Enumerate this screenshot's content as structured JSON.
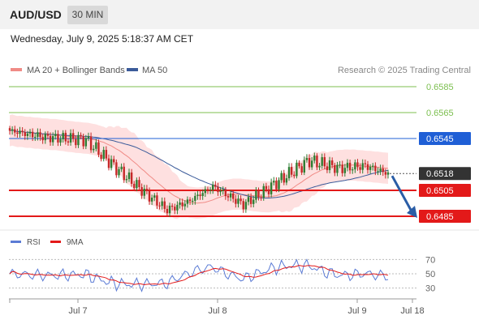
{
  "header": {
    "symbol": "AUD/USD",
    "timeframe": "30 MIN",
    "datetime": "Wednesday, July 9, 2025 5:18:37 AM CET"
  },
  "legend": {
    "ma20_label": "MA 20 + Bollinger Bands",
    "ma50_label": "MA 50",
    "research": "Research © 2025 Trading Central"
  },
  "colors": {
    "ma20": "#f08b86",
    "ma50": "#3b5b9a",
    "band": "#fdd6d6",
    "resistance": "#1f5fd6",
    "support": "#e31919",
    "target": "#7cbf4f",
    "arrow": "#2a5da6",
    "bull": "#2e7d32",
    "bear": "#c62828",
    "rsi": "#5b7bd5",
    "rsi_ma": "#e31919"
  },
  "chart_data": [
    {
      "type": "candlestick",
      "series_name": "AUD/USD",
      "ylim": [
        0.6478,
        0.6591
      ],
      "x_ticks": [
        "Jul 7",
        "Jul 8",
        "Jul 9",
        "Jul 18"
      ],
      "levels": [
        {
          "value": "0.6585",
          "kind": "target"
        },
        {
          "value": "0.6565",
          "kind": "target"
        },
        {
          "value": "0.6545",
          "kind": "resistance"
        },
        {
          "value": "0.6505",
          "kind": "support"
        },
        {
          "value": "0.6485",
          "kind": "support"
        }
      ],
      "current_price": "0.6518",
      "forecast_target": 0.6485,
      "legend": [
        "MA 20 + Bollinger Bands",
        "MA 50"
      ],
      "source": "Research © 2025 Trading Central"
    },
    {
      "type": "line",
      "series": [
        {
          "name": "RSI"
        },
        {
          "name": "9MA"
        }
      ],
      "y_ticks": [
        "70",
        "50",
        "30"
      ],
      "ylim": [
        10,
        90
      ]
    }
  ]
}
